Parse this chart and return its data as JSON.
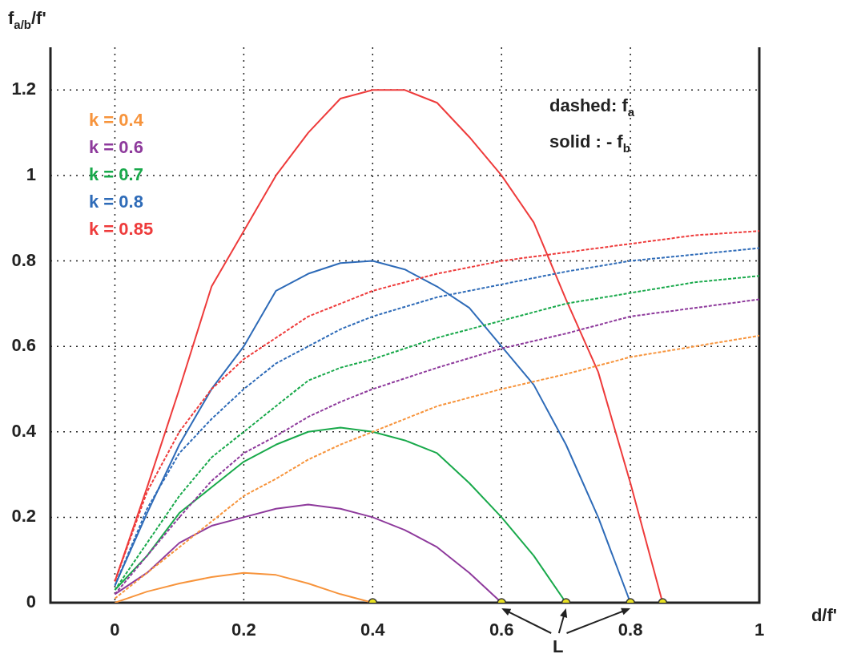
{
  "chart_data": {
    "type": "line",
    "xlabel": "d/f'",
    "ylabel": "f$_{a/b}$/f'",
    "xlim": [
      -0.1,
      1
    ],
    "xticks": [
      0,
      0.2,
      0.4,
      0.6,
      0.8,
      1
    ],
    "ylim": [
      0,
      1.3
    ],
    "yticks": [
      0,
      0.2,
      0.4,
      0.6,
      0.8,
      1,
      1.2
    ],
    "grid": true,
    "legend": "top left",
    "annotations": [
      "dashed: f$_{a}$",
      "solid : - f$_{b}$",
      {
        "text": "L",
        "x": 0.7,
        "y": 0
      }
    ],
    "series": [
      {
        "name": "k = 0.4",
        "color": "#f7943c",
        "line_style": "solid",
        "x": [
          0,
          0.05,
          0.1,
          0.15,
          0.2,
          0.25,
          0.3,
          0.35,
          0.4
        ],
        "values": [
          0,
          0.026,
          0.045,
          0.06,
          0.07,
          0.065,
          0.045,
          0.02,
          0
        ]
      },
      {
        "name": "k = 0.6",
        "color": "#8e3a9c",
        "line_style": "solid",
        "x": [
          0,
          0.05,
          0.1,
          0.15,
          0.2,
          0.25,
          0.3,
          0.35,
          0.4,
          0.45,
          0.5,
          0.55,
          0.6
        ],
        "values": [
          0.02,
          0.07,
          0.14,
          0.18,
          0.2,
          0.22,
          0.23,
          0.22,
          0.2,
          0.17,
          0.13,
          0.07,
          0
        ]
      },
      {
        "name": "k = 0.7",
        "color": "#19a94b",
        "line_style": "solid",
        "x": [
          0,
          0.05,
          0.1,
          0.15,
          0.2,
          0.25,
          0.3,
          0.35,
          0.4,
          0.45,
          0.5,
          0.55,
          0.6,
          0.65,
          0.7
        ],
        "values": [
          0.03,
          0.11,
          0.21,
          0.27,
          0.33,
          0.37,
          0.4,
          0.41,
          0.4,
          0.38,
          0.35,
          0.28,
          0.2,
          0.11,
          0
        ]
      },
      {
        "name": "k = 0.8",
        "color": "#2e6bb8",
        "line_style": "solid",
        "x": [
          0,
          0.05,
          0.1,
          0.15,
          0.2,
          0.25,
          0.3,
          0.35,
          0.4,
          0.45,
          0.5,
          0.55,
          0.6,
          0.65,
          0.7,
          0.75,
          0.8
        ],
        "values": [
          0.04,
          0.21,
          0.37,
          0.5,
          0.6,
          0.73,
          0.77,
          0.795,
          0.8,
          0.78,
          0.74,
          0.69,
          0.6,
          0.51,
          0.37,
          0.2,
          0
        ]
      },
      {
        "name": "k = 0.85",
        "color": "#ee3b3b",
        "line_style": "solid",
        "x": [
          0,
          0.05,
          0.1,
          0.15,
          0.2,
          0.25,
          0.3,
          0.35,
          0.4,
          0.45,
          0.5,
          0.55,
          0.6,
          0.65,
          0.7,
          0.75,
          0.8,
          0.85
        ],
        "values": [
          0.05,
          0.27,
          0.5,
          0.74,
          0.87,
          1.0,
          1.1,
          1.18,
          1.2,
          1.2,
          1.17,
          1.09,
          1.0,
          0.89,
          0.71,
          0.54,
          0.28,
          0
        ]
      },
      {
        "color": "#f7943c",
        "line_style": "dashed",
        "x": [
          0,
          0.05,
          0.1,
          0.15,
          0.2,
          0.25,
          0.3,
          0.35,
          0.4,
          0.5,
          0.6,
          0.7,
          0.8,
          0.9,
          1
        ],
        "values": [
          0.01,
          0.07,
          0.13,
          0.19,
          0.25,
          0.29,
          0.335,
          0.37,
          0.4,
          0.46,
          0.5,
          0.535,
          0.575,
          0.6,
          0.625
        ]
      },
      {
        "color": "#8e3a9c",
        "line_style": "dashed",
        "x": [
          0,
          0.05,
          0.1,
          0.15,
          0.2,
          0.25,
          0.3,
          0.35,
          0.4,
          0.5,
          0.6,
          0.7,
          0.8,
          0.9,
          1
        ],
        "values": [
          0.02,
          0.11,
          0.2,
          0.285,
          0.35,
          0.39,
          0.435,
          0.47,
          0.5,
          0.55,
          0.595,
          0.63,
          0.67,
          0.69,
          0.71
        ]
      },
      {
        "color": "#19a94b",
        "line_style": "dashed",
        "x": [
          0,
          0.05,
          0.1,
          0.15,
          0.2,
          0.25,
          0.3,
          0.35,
          0.4,
          0.5,
          0.6,
          0.7,
          0.8,
          0.9,
          1
        ],
        "values": [
          0.03,
          0.14,
          0.25,
          0.34,
          0.4,
          0.46,
          0.52,
          0.55,
          0.57,
          0.62,
          0.66,
          0.7,
          0.725,
          0.75,
          0.765
        ]
      },
      {
        "color": "#2e6bb8",
        "line_style": "dashed",
        "x": [
          0,
          0.05,
          0.1,
          0.15,
          0.2,
          0.25,
          0.3,
          0.35,
          0.4,
          0.5,
          0.6,
          0.7,
          0.8,
          0.9,
          1
        ],
        "values": [
          0.04,
          0.22,
          0.35,
          0.43,
          0.5,
          0.56,
          0.6,
          0.64,
          0.67,
          0.715,
          0.745,
          0.775,
          0.8,
          0.815,
          0.83
        ]
      },
      {
        "color": "#ee3b3b",
        "line_style": "dashed",
        "x": [
          0,
          0.05,
          0.1,
          0.15,
          0.2,
          0.25,
          0.3,
          0.35,
          0.4,
          0.5,
          0.6,
          0.7,
          0.8,
          0.9,
          1
        ],
        "values": [
          0.05,
          0.26,
          0.4,
          0.5,
          0.57,
          0.62,
          0.67,
          0.7,
          0.73,
          0.77,
          0.8,
          0.82,
          0.84,
          0.86,
          0.87
        ]
      },
      {
        "type": "scatter",
        "color": "#e8e023",
        "marker": "circle",
        "x": [
          0.4,
          0.6,
          0.7,
          0.8,
          0.85
        ],
        "values": [
          0,
          0,
          0,
          0,
          0
        ]
      }
    ]
  }
}
